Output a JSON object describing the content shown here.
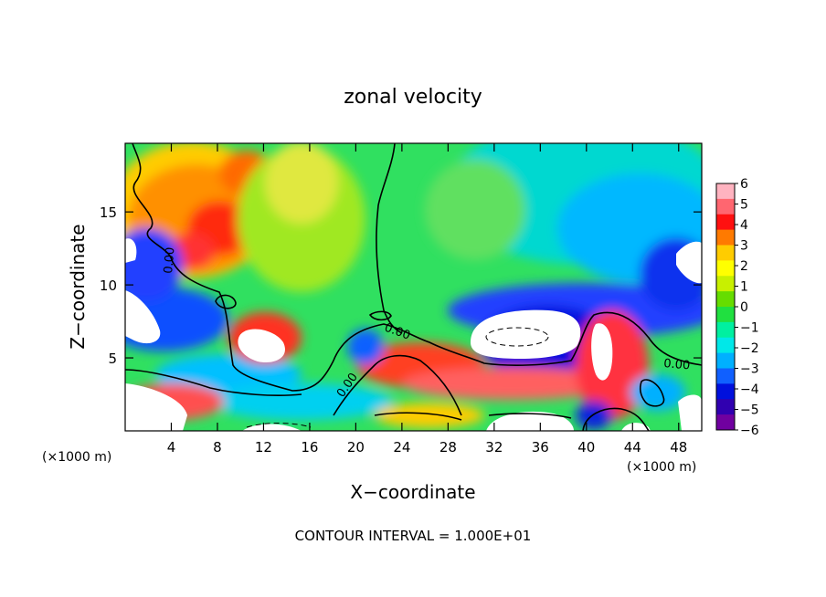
{
  "chart_data": {
    "type": "heatmap",
    "title": "zonal velocity",
    "xlabel": "X−coordinate",
    "ylabel": "Z−coordinate",
    "x_unit_left": "(×1000 m)",
    "x_unit_right": "(×1000 m)",
    "footer": "CONTOUR INTERVAL = 1.000E+01",
    "xlim": [
      0,
      50
    ],
    "ylim": [
      0,
      19.7
    ],
    "x_ticks": [
      4,
      8,
      12,
      16,
      20,
      24,
      28,
      32,
      36,
      40,
      44,
      48
    ],
    "y_ticks": [
      5,
      10,
      15
    ],
    "colorbar": {
      "range": [
        -6,
        6
      ],
      "labels": [
        "6",
        "5",
        "4",
        "3",
        "2",
        "1",
        "0",
        "−1",
        "−2",
        "−3",
        "−4",
        "−5",
        "−6"
      ],
      "colors": [
        "#ffb3c0",
        "#ff6670",
        "#ff1010",
        "#ff7a00",
        "#ffcc00",
        "#ffff00",
        "#c8f000",
        "#66dd00",
        "#20e040",
        "#00f0a0",
        "#00e8e8",
        "#00b0ff",
        "#1060ff",
        "#0010dd",
        "#3000b0",
        "#7000a0"
      ],
      "over_color": "#ffffff",
      "under_color": "#ffffff"
    },
    "contour_labels": [
      "0.00",
      "0.00",
      "0.00",
      "0.00"
    ],
    "features": [
      {
        "kind": "positive-max",
        "x": 9,
        "z": 13.5,
        "value": 5
      },
      {
        "kind": "positive-max",
        "x": 10,
        "z": 15,
        "value": 5
      },
      {
        "kind": "negative-band",
        "x": 38,
        "z": 9,
        "value": -5
      },
      {
        "kind": "off-scale-negative",
        "x": 34,
        "z": 6.5,
        "value": -8
      },
      {
        "kind": "off-scale-positive",
        "x": 10,
        "z": 5.5,
        "value": 7
      },
      {
        "kind": "off-scale-positive",
        "x": 42,
        "z": 4.5,
        "value": 7
      },
      {
        "kind": "off-scale-negative",
        "x": 2,
        "z": 8,
        "value": -8
      },
      {
        "kind": "off-scale-positive",
        "x": 36,
        "z": 0.8,
        "value": 7
      }
    ]
  }
}
